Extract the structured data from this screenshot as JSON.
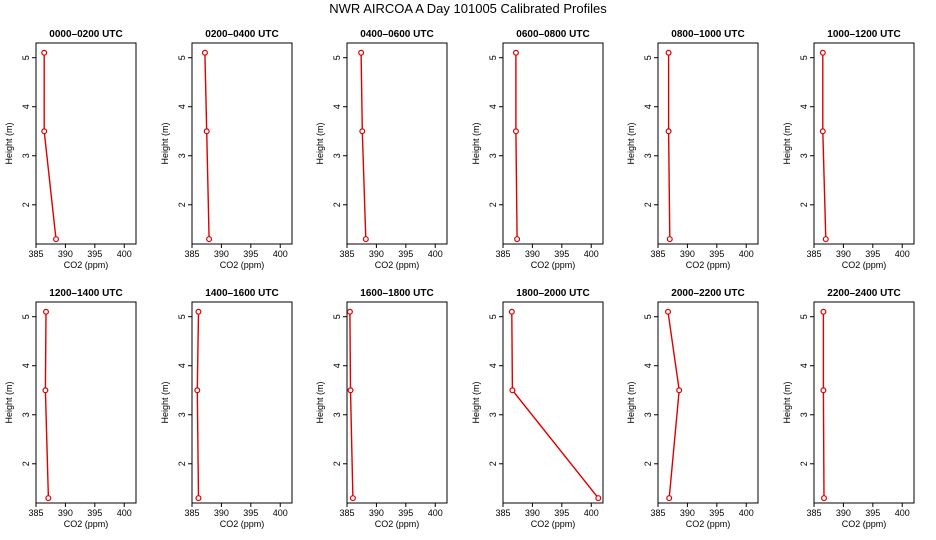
{
  "chart_data": {
    "title": "NWR AIRCOA A  Day 101005  Calibrated Profiles",
    "type": "line",
    "xlabel": "CO2 (ppm)",
    "ylabel": "Height (m)",
    "xlim": [
      385,
      402
    ],
    "ylim": [
      1.2,
      5.3
    ],
    "xticks": [
      "385",
      "390",
      "395",
      "400"
    ],
    "yticks": [
      "2",
      "3",
      "4",
      "5"
    ],
    "line_color": "#dd0000",
    "panels": [
      {
        "title": "0000–0200 UTC",
        "points": [
          {
            "x": 386.4,
            "y": 5.1
          },
          {
            "x": 386.4,
            "y": 3.5
          },
          {
            "x": 388.4,
            "y": 1.3
          }
        ]
      },
      {
        "title": "0200–0400 UTC",
        "points": [
          {
            "x": 387.2,
            "y": 5.1
          },
          {
            "x": 387.5,
            "y": 3.5
          },
          {
            "x": 387.9,
            "y": 1.3
          }
        ]
      },
      {
        "title": "0400–0600 UTC",
        "points": [
          {
            "x": 387.4,
            "y": 5.1
          },
          {
            "x": 387.6,
            "y": 3.5
          },
          {
            "x": 388.2,
            "y": 1.3
          }
        ]
      },
      {
        "title": "0600–0800 UTC",
        "points": [
          {
            "x": 387.2,
            "y": 5.1
          },
          {
            "x": 387.2,
            "y": 3.5
          },
          {
            "x": 387.4,
            "y": 1.3
          }
        ]
      },
      {
        "title": "0800–1000 UTC",
        "points": [
          {
            "x": 386.8,
            "y": 5.1
          },
          {
            "x": 386.8,
            "y": 3.5
          },
          {
            "x": 387.0,
            "y": 1.3
          }
        ]
      },
      {
        "title": "1000–1200 UTC",
        "points": [
          {
            "x": 386.5,
            "y": 5.1
          },
          {
            "x": 386.5,
            "y": 3.5
          },
          {
            "x": 387.0,
            "y": 1.3
          }
        ]
      },
      {
        "title": "1200–1400 UTC",
        "points": [
          {
            "x": 386.7,
            "y": 5.1
          },
          {
            "x": 386.6,
            "y": 3.5
          },
          {
            "x": 387.1,
            "y": 1.3
          }
        ]
      },
      {
        "title": "1400–1600 UTC",
        "points": [
          {
            "x": 386.1,
            "y": 5.1
          },
          {
            "x": 385.9,
            "y": 3.5
          },
          {
            "x": 386.1,
            "y": 1.3
          }
        ]
      },
      {
        "title": "1600–1800 UTC",
        "points": [
          {
            "x": 385.5,
            "y": 5.1
          },
          {
            "x": 385.6,
            "y": 3.5
          },
          {
            "x": 386.0,
            "y": 1.3
          }
        ]
      },
      {
        "title": "1800–2000 UTC",
        "points": [
          {
            "x": 386.5,
            "y": 5.1
          },
          {
            "x": 386.6,
            "y": 3.5
          },
          {
            "x": 401.2,
            "y": 1.3
          }
        ]
      },
      {
        "title": "2000–2200 UTC",
        "points": [
          {
            "x": 386.7,
            "y": 5.1
          },
          {
            "x": 388.6,
            "y": 3.5
          },
          {
            "x": 386.9,
            "y": 1.3
          }
        ]
      },
      {
        "title": "2200–2400 UTC",
        "points": [
          {
            "x": 386.6,
            "y": 5.1
          },
          {
            "x": 386.6,
            "y": 3.5
          },
          {
            "x": 386.7,
            "y": 1.3
          }
        ]
      }
    ]
  }
}
